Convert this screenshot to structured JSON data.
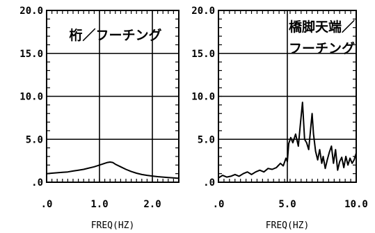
{
  "chart_data": [
    {
      "type": "line",
      "title": "桁／フーチング",
      "xlabel": "FREQ(HZ)",
      "ylabel": "",
      "xlim": [
        0,
        2.5
      ],
      "ylim": [
        0,
        20
      ],
      "x_ticks": [
        ".0",
        "1.0",
        "2.0"
      ],
      "x_tick_values": [
        0,
        1,
        2
      ],
      "y_ticks": [
        "20.0",
        "15.0",
        "10.0",
        "5.0",
        ".0"
      ],
      "y_tick_values": [
        20,
        15,
        10,
        5,
        0
      ],
      "grid": true,
      "series": [
        {
          "x": [
            0,
            0.1,
            0.2,
            0.3,
            0.4,
            0.5,
            0.6,
            0.7,
            0.8,
            0.9,
            1.0,
            1.05,
            1.1,
            1.15,
            1.2,
            1.25,
            1.3,
            1.4,
            1.5,
            1.6,
            1.7,
            1.8,
            1.9,
            2.0,
            2.1,
            2.2,
            2.3,
            2.4,
            2.5
          ],
          "y": [
            1.0,
            1.05,
            1.1,
            1.15,
            1.2,
            1.3,
            1.4,
            1.5,
            1.65,
            1.8,
            2.0,
            2.1,
            2.2,
            2.3,
            2.35,
            2.3,
            2.1,
            1.8,
            1.5,
            1.25,
            1.05,
            0.9,
            0.8,
            0.72,
            0.65,
            0.6,
            0.55,
            0.5,
            0.45
          ]
        }
      ]
    },
    {
      "type": "line",
      "title": "橋脚天端／\nフーチング",
      "xlabel": "FREQ(HZ)",
      "ylabel": "",
      "xlim": [
        0,
        10
      ],
      "ylim": [
        0,
        20
      ],
      "x_ticks": [
        ".0",
        "5.0",
        "10.0"
      ],
      "x_tick_values": [
        0,
        5,
        10
      ],
      "y_ticks": [
        "20.0",
        "15.0",
        "10.0",
        "5.0",
        ".0"
      ],
      "y_tick_values": [
        20,
        15,
        10,
        5,
        0
      ],
      "grid": true,
      "series": [
        {
          "x": [
            0,
            0.3,
            0.6,
            0.9,
            1.2,
            1.5,
            1.8,
            2.1,
            2.4,
            2.7,
            3.0,
            3.3,
            3.6,
            3.9,
            4.2,
            4.5,
            4.7,
            4.9,
            5.0,
            5.1,
            5.25,
            5.4,
            5.6,
            5.8,
            5.95,
            6.1,
            6.25,
            6.4,
            6.55,
            6.7,
            6.8,
            6.9,
            7.05,
            7.2,
            7.35,
            7.5,
            7.6,
            7.75,
            7.9,
            8.05,
            8.2,
            8.35,
            8.5,
            8.65,
            8.8,
            8.95,
            9.1,
            9.25,
            9.4,
            9.55,
            9.7,
            9.85,
            10.0
          ],
          "y": [
            0.5,
            0.8,
            0.6,
            0.7,
            0.9,
            0.7,
            1.0,
            1.2,
            0.9,
            1.2,
            1.4,
            1.2,
            1.6,
            1.5,
            1.7,
            2.2,
            1.9,
            2.8,
            2.4,
            4.5,
            5.2,
            4.6,
            5.6,
            4.2,
            6.8,
            9.3,
            5.0,
            4.6,
            3.8,
            6.4,
            8.0,
            5.6,
            3.6,
            2.6,
            3.8,
            2.2,
            3.0,
            1.6,
            2.6,
            3.5,
            4.2,
            2.2,
            3.8,
            1.4,
            2.4,
            2.9,
            1.7,
            3.0,
            2.0,
            2.8,
            2.2,
            2.6,
            3.4
          ]
        }
      ]
    }
  ]
}
